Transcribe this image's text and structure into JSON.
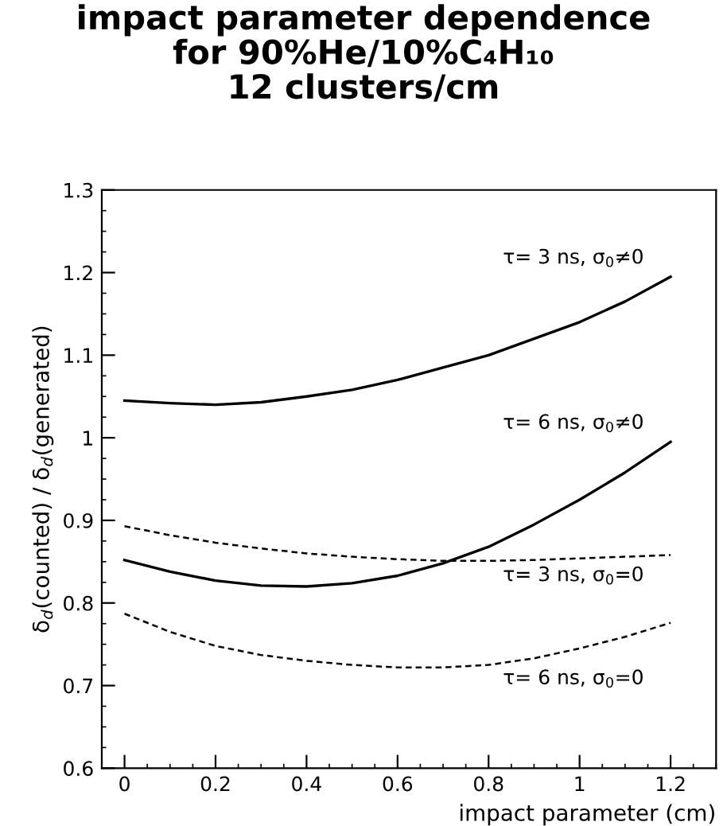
{
  "chart_data": {
    "type": "line",
    "title": "impact parameter dependence\nfor 90%He/10%C₄H₁₀\n12 clusters/cm",
    "xlabel": "impact parameter (cm)",
    "ylabel": "δ$_{d}$(counted) / δ$_{d}$(generated)",
    "x": [
      0,
      0.1,
      0.2,
      0.3,
      0.4,
      0.5,
      0.6,
      0.7,
      0.8,
      0.9,
      1.0,
      1.1,
      1.2
    ],
    "series": [
      {
        "name": "τ= 3 ns, σ$_{0}$≠0",
        "color": "#000000",
        "line_style": "solid",
        "values": [
          1.045,
          1.042,
          1.04,
          1.043,
          1.05,
          1.058,
          1.07,
          1.085,
          1.1,
          1.12,
          1.14,
          1.165,
          1.195
        ]
      },
      {
        "name": "τ= 6 ns, σ$_{0}$≠0",
        "color": "#000000",
        "line_style": "solid",
        "values": [
          0.852,
          0.838,
          0.827,
          0.821,
          0.82,
          0.824,
          0.833,
          0.848,
          0.868,
          0.895,
          0.925,
          0.958,
          0.995
        ]
      },
      {
        "name": "τ= 3 ns, σ$_{0}$=0",
        "color": "#000000",
        "line_style": "dashed",
        "values": [
          0.893,
          0.882,
          0.873,
          0.866,
          0.86,
          0.856,
          0.853,
          0.851,
          0.851,
          0.852,
          0.854,
          0.856,
          0.858
        ]
      },
      {
        "name": "τ= 6 ns, σ$_{0}$=0",
        "color": "#000000",
        "line_style": "dashed",
        "values": [
          0.787,
          0.765,
          0.748,
          0.737,
          0.73,
          0.725,
          0.722,
          0.722,
          0.725,
          0.733,
          0.745,
          0.759,
          0.776
        ]
      }
    ],
    "xlim": [
      -0.05,
      1.3
    ],
    "ylim": [
      0.6,
      1.3
    ],
    "xticks": [
      0,
      0.2,
      0.4,
      0.6,
      0.8,
      1,
      1.2
    ],
    "yticks": [
      0.6,
      0.7,
      0.8,
      0.9,
      1,
      1.1,
      1.2,
      1.3
    ],
    "marker": "none",
    "grid": false,
    "legend": false
  }
}
